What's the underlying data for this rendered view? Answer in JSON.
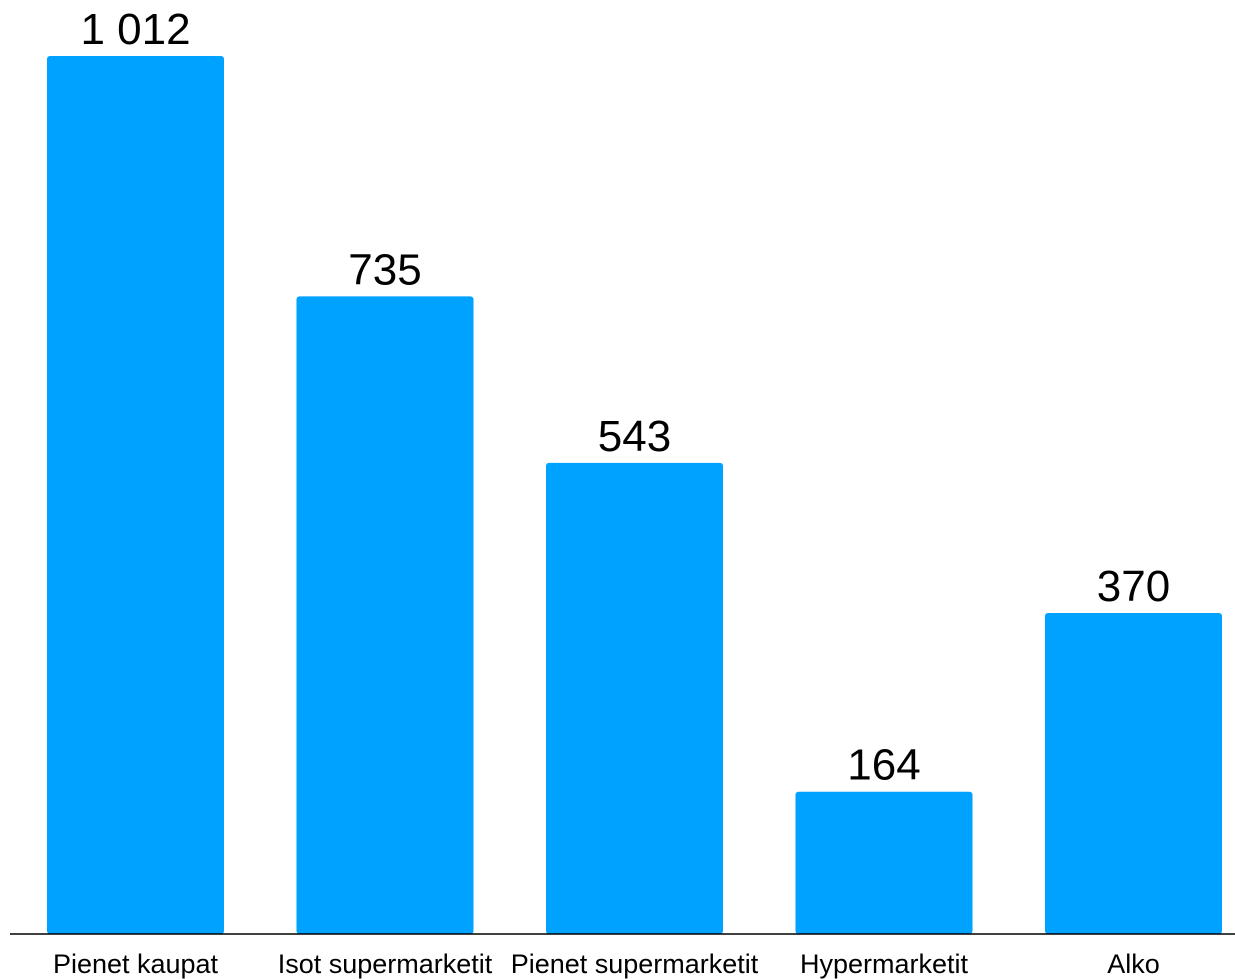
{
  "chart_data": {
    "type": "bar",
    "categories": [
      "Pienet kaupat",
      "Isot supermarketit",
      "Pienet supermarketit",
      "Hypermarketit",
      "Alko"
    ],
    "values": [
      1012,
      735,
      543,
      164,
      370
    ],
    "value_labels": [
      "1 012",
      "735",
      "543",
      "164",
      "370"
    ],
    "title": "",
    "xlabel": "",
    "ylabel": "",
    "ylim": [
      0,
      1012
    ],
    "grid": false,
    "legend": "none",
    "bar_color": "#00A2FF",
    "axis_color": "#000000"
  }
}
